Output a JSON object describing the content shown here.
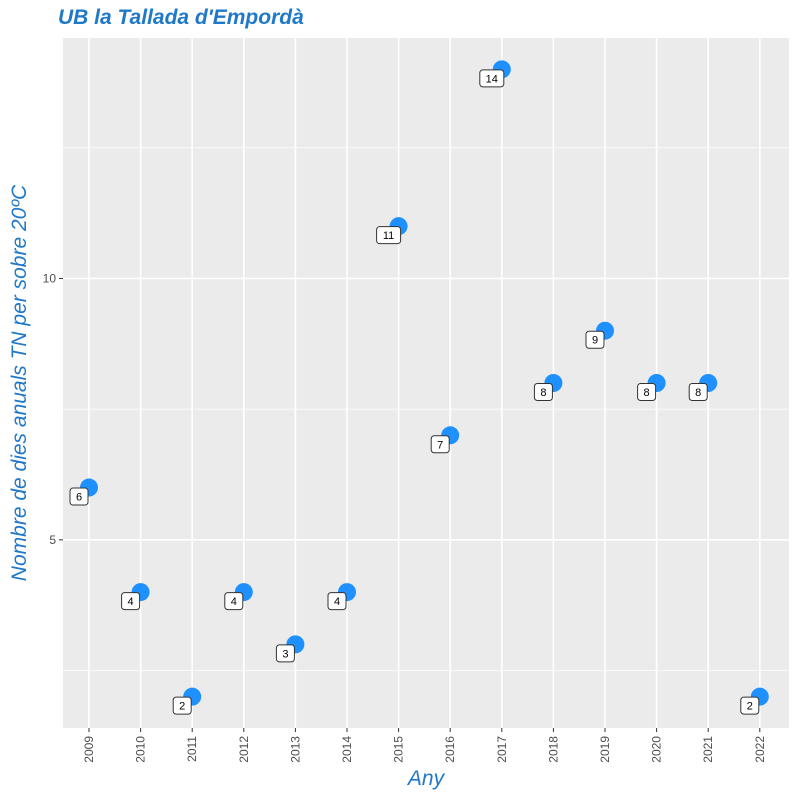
{
  "chart_data": {
    "type": "scatter",
    "title": "UB la Tallada d'Empordà",
    "xlabel": "Any",
    "ylabel": "Nombre de dies anuals TN per sobre 20ºC",
    "x": [
      "2009",
      "2010",
      "2011",
      "2012",
      "2013",
      "2014",
      "2015",
      "2016",
      "2017",
      "2018",
      "2019",
      "2020",
      "2021",
      "2022"
    ],
    "values": [
      6,
      4,
      2,
      4,
      3,
      4,
      11,
      7,
      14,
      8,
      9,
      8,
      8,
      2
    ],
    "data_labels": [
      "6",
      "4",
      "2",
      "4",
      "3",
      "4",
      "11",
      "7",
      "14",
      "8",
      "9",
      "8",
      "8",
      "2"
    ],
    "y_ticks": [
      5,
      10
    ],
    "y_tick_labels": [
      "5",
      "10"
    ],
    "ylim": [
      1.4,
      14.6
    ],
    "grid": true,
    "legend": "none",
    "colors": {
      "point": "#1e90ff",
      "title": "#1f78c8",
      "panel": "#ebebeb",
      "grid": "#ffffff"
    }
  }
}
